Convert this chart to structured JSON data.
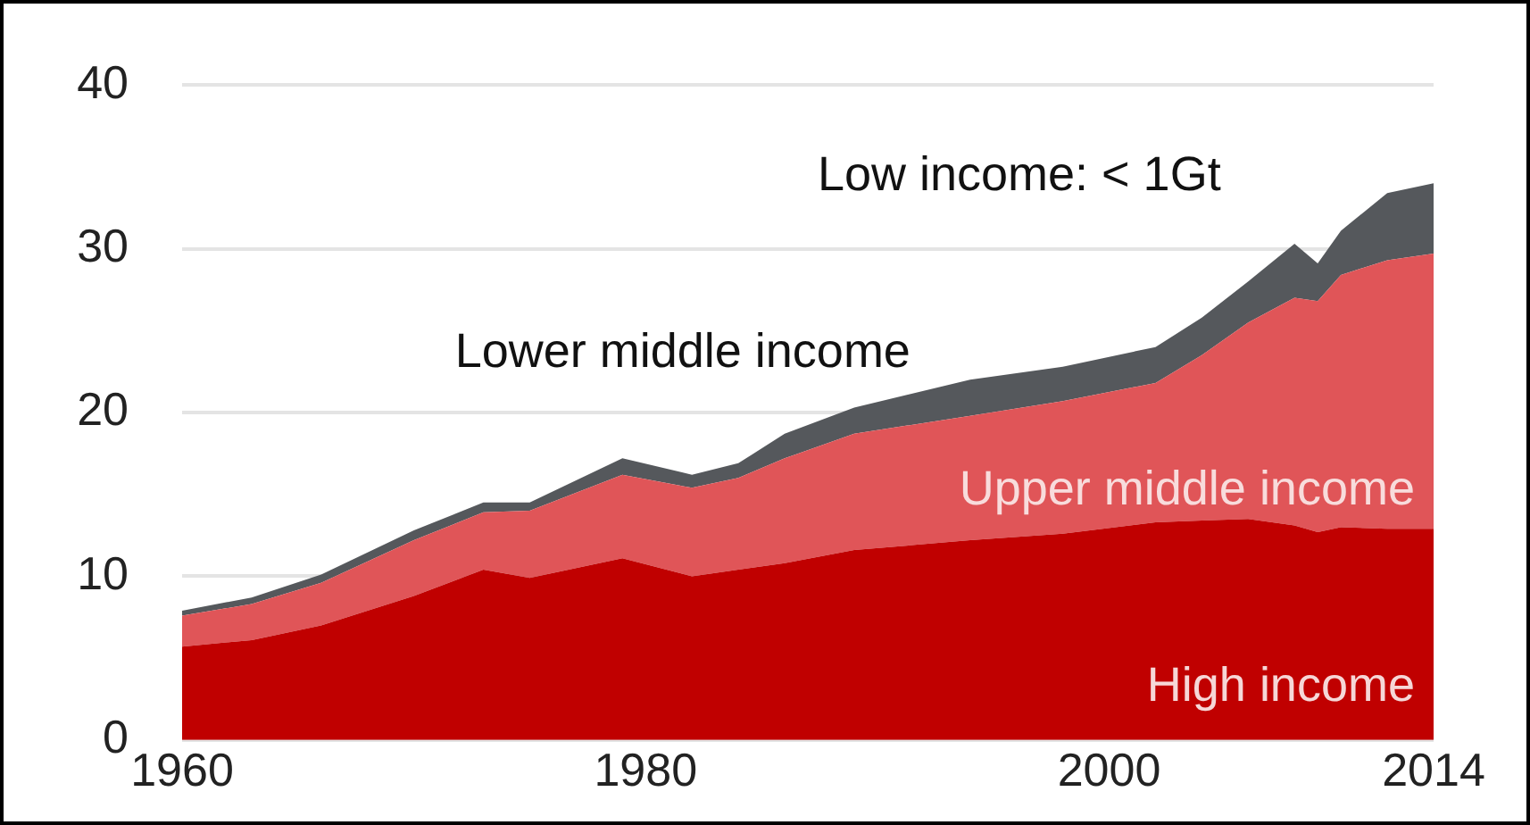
{
  "chart_data": {
    "type": "area",
    "stacked": true,
    "x": [
      1960,
      1963,
      1966,
      1970,
      1973,
      1975,
      1979,
      1982,
      1984,
      1986,
      1989,
      1994,
      1998,
      2002,
      2004,
      2006,
      2008,
      2009,
      2010,
      2012,
      2014
    ],
    "series": [
      {
        "name": "High income",
        "color": "#c00000",
        "values": [
          5.7,
          6.1,
          7.0,
          8.8,
          10.4,
          9.9,
          11.1,
          10.0,
          10.4,
          10.8,
          11.6,
          12.2,
          12.6,
          13.3,
          13.4,
          13.5,
          13.1,
          12.7,
          13.0,
          12.9,
          12.9
        ]
      },
      {
        "name": "Upper middle income",
        "color": "#e05558",
        "values": [
          1.9,
          2.2,
          2.6,
          3.4,
          3.5,
          4.1,
          5.1,
          5.4,
          5.6,
          6.4,
          7.1,
          7.6,
          8.1,
          8.5,
          10.1,
          12.0,
          13.9,
          14.1,
          15.4,
          16.4,
          16.8
        ]
      },
      {
        "name": "Lower middle income",
        "color": "#55585c",
        "values": [
          0.3,
          0.4,
          0.5,
          0.6,
          0.6,
          0.5,
          1.0,
          0.8,
          0.9,
          1.5,
          1.6,
          2.2,
          2.1,
          2.2,
          2.3,
          2.5,
          3.3,
          2.3,
          2.7,
          4.1,
          4.3
        ]
      }
    ],
    "annotations": [
      "Low income: < 1Gt"
    ],
    "xlim": [
      1960,
      2014
    ],
    "xticks": [
      1960,
      1980,
      2000,
      2014
    ],
    "ylim": [
      0,
      40
    ],
    "yticks": [
      0,
      10,
      20,
      30,
      40
    ],
    "grid": "y",
    "legend": false
  }
}
